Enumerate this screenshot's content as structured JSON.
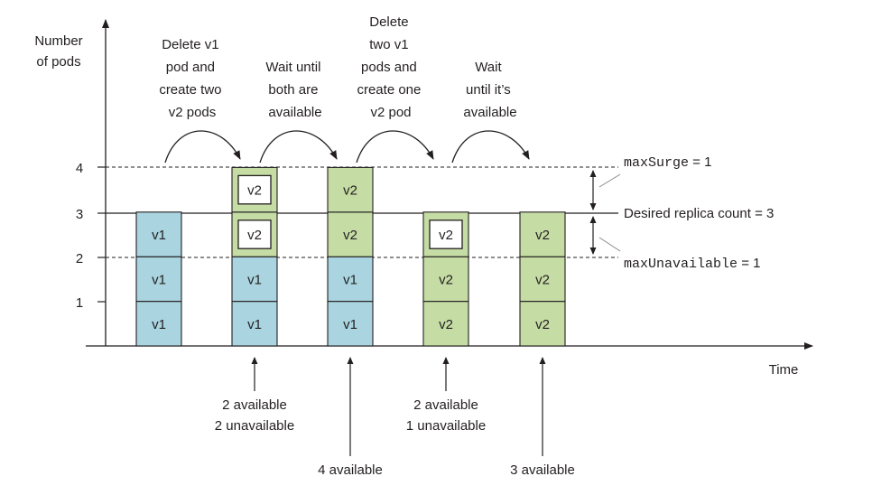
{
  "axes": {
    "y_label_lines": [
      "Number",
      "of pods"
    ],
    "x_label": "Time",
    "y_ticks": [
      "1",
      "2",
      "3",
      "4"
    ]
  },
  "steps": [
    {
      "lines": [
        "Delete v1",
        "pod and",
        "create two",
        "v2 pods"
      ]
    },
    {
      "lines": [
        "Wait until",
        "both are",
        "available"
      ]
    },
    {
      "lines": [
        "Delete",
        "two v1",
        "pods and",
        "create one",
        "v2 pod"
      ]
    },
    {
      "lines": [
        "Wait",
        "until it’s",
        "available"
      ]
    }
  ],
  "annotations": {
    "max_surge": {
      "key": "maxSurge",
      "value": " = 1"
    },
    "desired": "Desired replica count = 3",
    "max_unavailable": {
      "key": "maxUnavailable",
      "value": " = 1"
    }
  },
  "columns": [
    {
      "pods": [
        {
          "label": "v1",
          "version": "v1",
          "available": true
        },
        {
          "label": "v1",
          "version": "v1",
          "available": true
        },
        {
          "label": "v1",
          "version": "v1",
          "available": true
        }
      ]
    },
    {
      "pods": [
        {
          "label": "v1",
          "version": "v1",
          "available": true
        },
        {
          "label": "v1",
          "version": "v1",
          "available": true
        },
        {
          "label": "v2",
          "version": "v2",
          "available": false
        },
        {
          "label": "v2",
          "version": "v2",
          "available": false
        }
      ]
    },
    {
      "pods": [
        {
          "label": "v1",
          "version": "v1",
          "available": true
        },
        {
          "label": "v1",
          "version": "v1",
          "available": true
        },
        {
          "label": "v2",
          "version": "v2",
          "available": true
        },
        {
          "label": "v2",
          "version": "v2",
          "available": true
        }
      ]
    },
    {
      "pods": [
        {
          "label": "v2",
          "version": "v2",
          "available": true
        },
        {
          "label": "v2",
          "version": "v2",
          "available": true
        },
        {
          "label": "v2",
          "version": "v2",
          "available": false
        }
      ]
    },
    {
      "pods": [
        {
          "label": "v2",
          "version": "v2",
          "available": true
        },
        {
          "label": "v2",
          "version": "v2",
          "available": true
        },
        {
          "label": "v2",
          "version": "v2",
          "available": true
        }
      ]
    }
  ],
  "status_notes": [
    {
      "column": 1,
      "lines": [
        "2 available",
        "2 unavailable"
      ]
    },
    {
      "column": 2,
      "lines": [
        "4 available"
      ]
    },
    {
      "column": 3,
      "lines": [
        "2 available",
        "1 unavailable"
      ]
    },
    {
      "column": 4,
      "lines": [
        "3 available"
      ]
    }
  ],
  "colors": {
    "v1": "#a9d4e0",
    "v2": "#c5dca4",
    "stroke": "#231f20",
    "pending_inner": "#ffffff"
  }
}
